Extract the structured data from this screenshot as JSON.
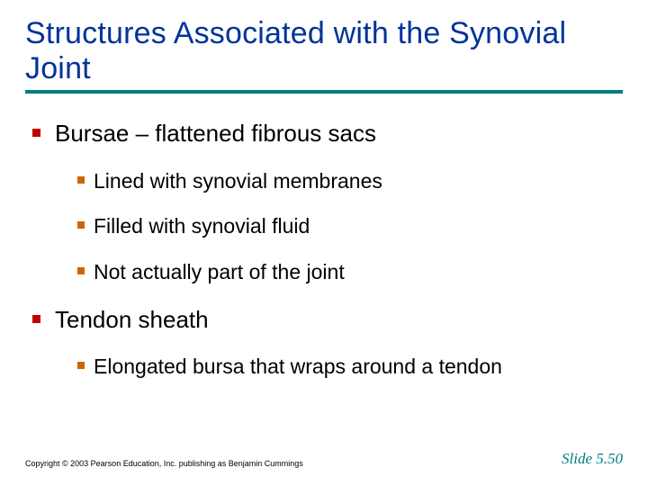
{
  "title": "Structures Associated with the Synovial Joint",
  "colors": {
    "title_text": "#003399",
    "title_rule": "#008080",
    "body_text": "#000000",
    "lvl1_bullet": "#c00000",
    "lvl2_bullet": "#cc6600",
    "slide_number": "#008080",
    "background": "#ffffff"
  },
  "typography": {
    "title_fontsize": 34,
    "lvl1_fontsize": 26,
    "lvl2_fontsize": 23,
    "footer_fontsize": 9,
    "slidenum_fontsize": 17,
    "slidenum_italic": true
  },
  "bullets": [
    {
      "text": "Bursae – flattened fibrous sacs",
      "children": [
        {
          "text": "Lined with synovial membranes"
        },
        {
          "text": "Filled with synovial fluid"
        },
        {
          "text": "Not actually part of the joint"
        }
      ]
    },
    {
      "text": "Tendon sheath",
      "children": [
        {
          "text": "Elongated bursa that wraps around a tendon"
        }
      ]
    }
  ],
  "footer": {
    "copyright": "Copyright © 2003 Pearson Education, Inc. publishing as Benjamin Cummings",
    "slide_number": "Slide 5.50"
  }
}
